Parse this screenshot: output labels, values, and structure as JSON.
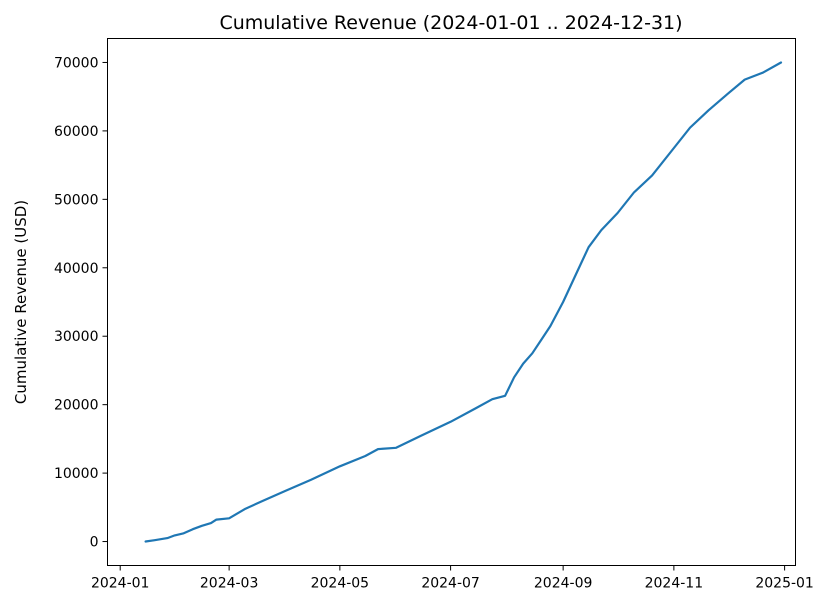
{
  "chart_data": {
    "type": "line",
    "title": "Cumulative Revenue (2024-01-01 .. 2024-12-31)",
    "xlabel": "",
    "ylabel": "Cumulative Revenue (USD)",
    "xlim": [
      "2023-12-25",
      "2025-01-07"
    ],
    "ylim": [
      -3500,
      73500
    ],
    "grid": false,
    "color": "#1f77b4",
    "x_ticks": [
      {
        "value": "2024-01-01",
        "label": "2024-01"
      },
      {
        "value": "2024-03-01",
        "label": "2024-03"
      },
      {
        "value": "2024-05-01",
        "label": "2024-05"
      },
      {
        "value": "2024-07-01",
        "label": "2024-07"
      },
      {
        "value": "2024-09-01",
        "label": "2024-09"
      },
      {
        "value": "2024-11-01",
        "label": "2024-11"
      },
      {
        "value": "2025-01-01",
        "label": "2025-01"
      }
    ],
    "y_ticks": [
      {
        "value": 0,
        "label": "0"
      },
      {
        "value": 10000,
        "label": "10000"
      },
      {
        "value": 20000,
        "label": "20000"
      },
      {
        "value": 30000,
        "label": "30000"
      },
      {
        "value": 40000,
        "label": "40000"
      },
      {
        "value": 50000,
        "label": "50000"
      },
      {
        "value": 60000,
        "label": "60000"
      },
      {
        "value": 70000,
        "label": "70000"
      }
    ],
    "series": [
      {
        "x": [
          "2024-01-15",
          "2024-01-20",
          "2024-01-27",
          "2024-01-31",
          "2024-02-05",
          "2024-02-10",
          "2024-02-15",
          "2024-02-20",
          "2024-02-23",
          "2024-03-01",
          "2024-03-10",
          "2024-03-20",
          "2024-04-01",
          "2024-04-15",
          "2024-05-01",
          "2024-05-15",
          "2024-05-22",
          "2024-06-01",
          "2024-06-15",
          "2024-07-01",
          "2024-07-15",
          "2024-07-24",
          "2024-07-31",
          "2024-08-05",
          "2024-08-10",
          "2024-08-15",
          "2024-08-20",
          "2024-08-25",
          "2024-09-01",
          "2024-09-08",
          "2024-09-15",
          "2024-09-22",
          "2024-10-01",
          "2024-10-10",
          "2024-10-20",
          "2024-11-01",
          "2024-11-10",
          "2024-11-20",
          "2024-12-01",
          "2024-12-10",
          "2024-12-20",
          "2024-12-30"
        ],
        "y": [
          0,
          200,
          500,
          900,
          1200,
          1800,
          2300,
          2700,
          3200,
          3400,
          4800,
          6000,
          7400,
          9000,
          11000,
          12500,
          13500,
          13700,
          15500,
          17500,
          19500,
          20800,
          21300,
          24000,
          26000,
          27500,
          29500,
          31500,
          35000,
          39000,
          43000,
          45500,
          48000,
          51000,
          53500,
          57500,
          60500,
          63000,
          65500,
          67500,
          68500,
          70000
        ]
      }
    ]
  }
}
